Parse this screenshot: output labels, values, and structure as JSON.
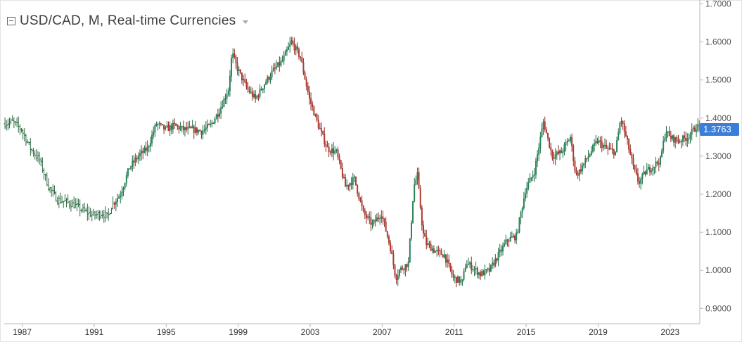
{
  "header": {
    "title": "USD/CAD, M, Real-time Currencies",
    "collapse_icon": "collapse-square-icon",
    "dropdown_icon": "caret-down-icon"
  },
  "colors": {
    "up": "#26865a",
    "down": "#c0392b",
    "wick_up": "#1f6f48",
    "wick_down": "#8e2a22",
    "bar_early": "#2c6a42",
    "price_label_bg": "#3b7dd8",
    "axis_text": "#555555",
    "axis_line": "#b7b7b7"
  },
  "chart_data": {
    "type": "candlestick",
    "title": "USD/CAD, M, Real-time Currencies",
    "xlabel": "",
    "ylabel": "",
    "ylim": [
      0.86,
      1.71
    ],
    "xlim": [
      1986.0,
      2024.65
    ],
    "y_ticks": [
      "1.7000",
      "1.6000",
      "1.5000",
      "1.4000",
      "1.3000",
      "1.2000",
      "1.1000",
      "1.0000",
      "0.9000"
    ],
    "x_ticks": [
      "1987",
      "1991",
      "1995",
      "1999",
      "2003",
      "2007",
      "2011",
      "2015",
      "2019",
      "2023"
    ],
    "last_price": "1.3763",
    "grid": false,
    "anchors": [
      [
        1986.0,
        1.385
      ],
      [
        1986.5,
        1.39
      ],
      [
        1987.0,
        1.37
      ],
      [
        1987.5,
        1.32
      ],
      [
        1988.0,
        1.29
      ],
      [
        1988.5,
        1.22
      ],
      [
        1989.0,
        1.185
      ],
      [
        1989.5,
        1.18
      ],
      [
        1990.0,
        1.17
      ],
      [
        1990.5,
        1.155
      ],
      [
        1991.0,
        1.145
      ],
      [
        1991.5,
        1.15
      ],
      [
        1991.8,
        1.14
      ],
      [
        1992.0,
        1.17
      ],
      [
        1992.5,
        1.2
      ],
      [
        1993.0,
        1.27
      ],
      [
        1993.5,
        1.3
      ],
      [
        1994.0,
        1.32
      ],
      [
        1994.5,
        1.385
      ],
      [
        1995.0,
        1.37
      ],
      [
        1995.5,
        1.38
      ],
      [
        1996.0,
        1.37
      ],
      [
        1996.5,
        1.37
      ],
      [
        1997.0,
        1.365
      ],
      [
        1997.5,
        1.38
      ],
      [
        1998.0,
        1.42
      ],
      [
        1998.5,
        1.475
      ],
      [
        1998.7,
        1.57
      ],
      [
        1999.0,
        1.53
      ],
      [
        1999.5,
        1.48
      ],
      [
        2000.0,
        1.45
      ],
      [
        2000.5,
        1.49
      ],
      [
        2001.0,
        1.525
      ],
      [
        2001.5,
        1.55
      ],
      [
        2002.0,
        1.6
      ],
      [
        2002.5,
        1.56
      ],
      [
        2003.0,
        1.45
      ],
      [
        2003.5,
        1.38
      ],
      [
        2004.0,
        1.32
      ],
      [
        2004.5,
        1.31
      ],
      [
        2005.0,
        1.22
      ],
      [
        2005.5,
        1.24
      ],
      [
        2006.0,
        1.15
      ],
      [
        2006.5,
        1.12
      ],
      [
        2007.0,
        1.15
      ],
      [
        2007.5,
        1.06
      ],
      [
        2007.8,
        0.98
      ],
      [
        2008.0,
        1.0
      ],
      [
        2008.5,
        1.02
      ],
      [
        2008.8,
        1.22
      ],
      [
        2009.0,
        1.25
      ],
      [
        2009.3,
        1.1
      ],
      [
        2009.5,
        1.07
      ],
      [
        2010.0,
        1.05
      ],
      [
        2010.5,
        1.04
      ],
      [
        2011.0,
        0.98
      ],
      [
        2011.5,
        0.97
      ],
      [
        2011.7,
        1.02
      ],
      [
        2012.0,
        1.01
      ],
      [
        2012.5,
        0.99
      ],
      [
        2013.0,
        1.0
      ],
      [
        2013.5,
        1.04
      ],
      [
        2014.0,
        1.08
      ],
      [
        2014.5,
        1.09
      ],
      [
        2015.0,
        1.21
      ],
      [
        2015.5,
        1.26
      ],
      [
        2016.0,
        1.39
      ],
      [
        2016.5,
        1.3
      ],
      [
        2017.0,
        1.31
      ],
      [
        2017.5,
        1.35
      ],
      [
        2017.8,
        1.25
      ],
      [
        2018.0,
        1.26
      ],
      [
        2018.5,
        1.3
      ],
      [
        2019.0,
        1.34
      ],
      [
        2019.5,
        1.32
      ],
      [
        2020.0,
        1.31
      ],
      [
        2020.3,
        1.4
      ],
      [
        2020.7,
        1.33
      ],
      [
        2021.0,
        1.27
      ],
      [
        2021.3,
        1.23
      ],
      [
        2021.7,
        1.26
      ],
      [
        2022.0,
        1.27
      ],
      [
        2022.5,
        1.29
      ],
      [
        2022.8,
        1.37
      ],
      [
        2023.0,
        1.35
      ],
      [
        2023.5,
        1.34
      ],
      [
        2024.0,
        1.35
      ],
      [
        2024.5,
        1.3763
      ]
    ]
  }
}
